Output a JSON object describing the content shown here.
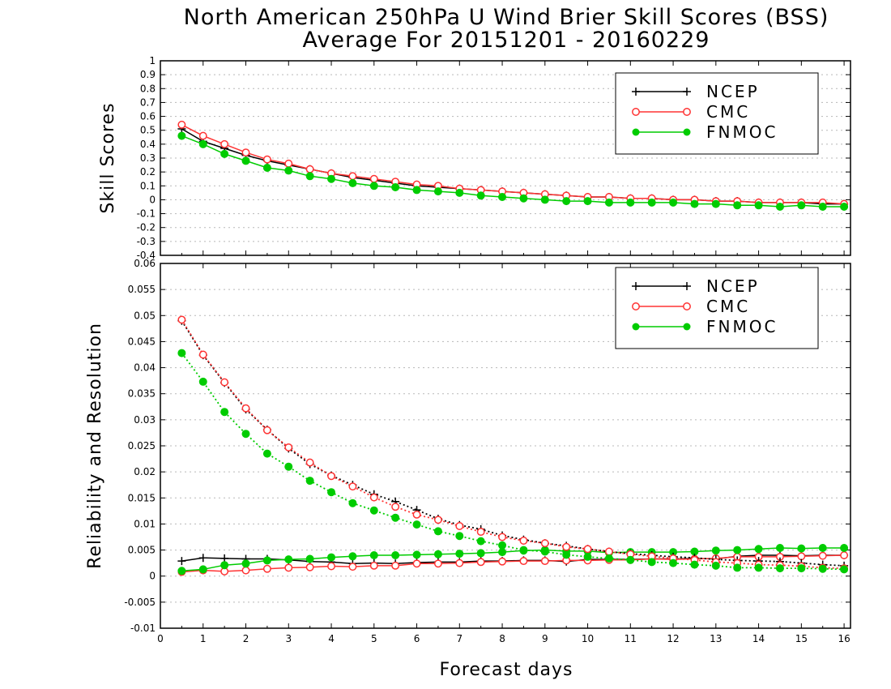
{
  "chart_data": [
    {
      "type": "line",
      "title": "North American 250hPa U Wind Brier Skill Scores (BSS)",
      "subtitle": "Average For 20151201 - 20160229",
      "xlabel": "Forecast days",
      "ylabel": "Skill Scores",
      "xlim": [
        0,
        16.15
      ],
      "ylim": [
        -0.4,
        1
      ],
      "xticks": [
        "0",
        "1",
        "2",
        "3",
        "4",
        "5",
        "6",
        "7",
        "8",
        "9",
        "10",
        "11",
        "12",
        "13",
        "14",
        "15",
        "16"
      ],
      "yticks": [
        "1",
        "0.9",
        "0.8",
        "0.7",
        "0.6",
        "0.5",
        "0.4",
        "0.3",
        "0.2",
        "0.1",
        "0",
        "-0.1",
        "-0.2",
        "-0.3",
        "-0.4"
      ],
      "grid": true,
      "legend_position": "top-right",
      "x": [
        0.5,
        1,
        1.5,
        2,
        2.5,
        3,
        3.5,
        4,
        4.5,
        5,
        5.5,
        6,
        6.5,
        7,
        7.5,
        8,
        8.5,
        9,
        9.5,
        10,
        10.5,
        11,
        11.5,
        12,
        12.5,
        13,
        13.5,
        14,
        14.5,
        15,
        15.5,
        16
      ],
      "series": [
        {
          "name": "NCEP",
          "color": "#000000",
          "marker": "plus",
          "values": [
            0.51,
            0.42,
            0.37,
            0.32,
            0.28,
            0.25,
            0.22,
            0.19,
            0.16,
            0.14,
            0.12,
            0.1,
            0.09,
            0.08,
            0.07,
            0.06,
            0.05,
            0.04,
            0.03,
            0.02,
            0.02,
            0.01,
            0.01,
            0.0,
            0.0,
            -0.01,
            -0.01,
            -0.02,
            -0.02,
            -0.02,
            -0.03,
            -0.03
          ]
        },
        {
          "name": "CMC",
          "color": "#ff3333",
          "marker": "open-circle",
          "values": [
            0.54,
            0.46,
            0.4,
            0.34,
            0.29,
            0.26,
            0.22,
            0.19,
            0.17,
            0.15,
            0.13,
            0.11,
            0.1,
            0.08,
            0.07,
            0.06,
            0.05,
            0.04,
            0.03,
            0.02,
            0.02,
            0.01,
            0.01,
            0.0,
            0.0,
            -0.01,
            -0.01,
            -0.02,
            -0.02,
            -0.02,
            -0.02,
            -0.03
          ]
        },
        {
          "name": "FNMOC",
          "color": "#00cc00",
          "marker": "filled-circle",
          "values": [
            0.46,
            0.4,
            0.33,
            0.28,
            0.23,
            0.21,
            0.17,
            0.15,
            0.12,
            0.1,
            0.09,
            0.07,
            0.06,
            0.05,
            0.03,
            0.02,
            0.01,
            0.0,
            -0.01,
            -0.01,
            -0.02,
            -0.02,
            -0.02,
            -0.02,
            -0.03,
            -0.03,
            -0.04,
            -0.04,
            -0.05,
            -0.04,
            -0.05,
            -0.05
          ]
        }
      ]
    },
    {
      "type": "line",
      "xlabel": "Forecast days",
      "ylabel": "Reliability and Resolution",
      "xlim": [
        0,
        16.15
      ],
      "ylim": [
        -0.01,
        0.06
      ],
      "xticks": [
        "0",
        "1",
        "2",
        "3",
        "4",
        "5",
        "6",
        "7",
        "8",
        "9",
        "10",
        "11",
        "12",
        "13",
        "14",
        "15",
        "16"
      ],
      "yticks": [
        "0.06",
        "0.055",
        "0.05",
        "0.045",
        "0.04",
        "0.035",
        "0.03",
        "0.025",
        "0.02",
        "0.015",
        "0.01",
        "0.005",
        "0",
        "-0.005",
        "-0.01"
      ],
      "grid": true,
      "legend_position": "top-right",
      "x": [
        0.5,
        1,
        1.5,
        2,
        2.5,
        3,
        3.5,
        4,
        4.5,
        5,
        5.5,
        6,
        6.5,
        7,
        7.5,
        8,
        8.5,
        9,
        9.5,
        10,
        10.5,
        11,
        11.5,
        12,
        12.5,
        13,
        13.5,
        14,
        14.5,
        15,
        15.5,
        16
      ],
      "series": [
        {
          "name": "NCEP",
          "color": "#000000",
          "marker": "plus",
          "line": "solid",
          "values": [
            0.0029,
            0.0035,
            0.0034,
            0.0033,
            0.0033,
            0.0031,
            0.0028,
            0.0027,
            0.0024,
            0.0025,
            0.0024,
            0.0026,
            0.0027,
            0.0027,
            0.0029,
            0.0029,
            0.003,
            0.003,
            0.0028,
            0.0032,
            0.0032,
            0.0032,
            0.0033,
            0.0033,
            0.0034,
            0.0033,
            0.0038,
            0.004,
            0.004,
            0.0039,
            0.004,
            0.004
          ]
        },
        {
          "name": "CMC",
          "color": "#ff3333",
          "marker": "open-circle",
          "line": "solid",
          "values": [
            0.0008,
            0.0011,
            0.0009,
            0.0011,
            0.0014,
            0.0016,
            0.0017,
            0.0019,
            0.0018,
            0.002,
            0.002,
            0.0024,
            0.0024,
            0.0025,
            0.0027,
            0.0028,
            0.0029,
            0.0029,
            0.003,
            0.003,
            0.0031,
            0.0031,
            0.0033,
            0.0032,
            0.0033,
            0.0034,
            0.0037,
            0.0037,
            0.0037,
            0.0038,
            0.0039,
            0.004
          ]
        },
        {
          "name": "FNMOC",
          "color": "#00cc00",
          "marker": "filled-circle",
          "line": "solid",
          "values": [
            0.001,
            0.0013,
            0.0021,
            0.0024,
            0.003,
            0.0032,
            0.0033,
            0.0036,
            0.0038,
            0.004,
            0.004,
            0.0041,
            0.0042,
            0.0043,
            0.0044,
            0.0046,
            0.0049,
            0.005,
            0.0048,
            0.0048,
            0.0045,
            0.0046,
            0.0046,
            0.0046,
            0.0047,
            0.0049,
            0.005,
            0.0052,
            0.0054,
            0.0053,
            0.0054,
            0.0054
          ]
        },
        {
          "name": "NCEP",
          "color": "#000000",
          "marker": "plus",
          "line": "dotted",
          "values": [
            0.049,
            0.0424,
            0.0371,
            0.032,
            0.0281,
            0.0245,
            0.0215,
            0.0193,
            0.0175,
            0.0157,
            0.0143,
            0.0127,
            0.011,
            0.0098,
            0.009,
            0.0078,
            0.007,
            0.0063,
            0.0058,
            0.0052,
            0.0047,
            0.0043,
            0.004,
            0.0037,
            0.0035,
            0.0032,
            0.003,
            0.0029,
            0.0028,
            0.0025,
            0.0022,
            0.002
          ]
        },
        {
          "name": "CMC",
          "color": "#ff3333",
          "marker": "open-circle",
          "line": "dotted",
          "values": [
            0.0492,
            0.0425,
            0.0372,
            0.0322,
            0.028,
            0.0247,
            0.0218,
            0.0192,
            0.0172,
            0.0151,
            0.0133,
            0.0118,
            0.0108,
            0.0096,
            0.0085,
            0.0075,
            0.0068,
            0.0063,
            0.0056,
            0.0052,
            0.0047,
            0.0042,
            0.0038,
            0.0034,
            0.0031,
            0.0027,
            0.0025,
            0.0022,
            0.0021,
            0.0019,
            0.0016,
            0.0015
          ]
        },
        {
          "name": "FNMOC",
          "color": "#00cc00",
          "marker": "filled-circle",
          "line": "dotted",
          "values": [
            0.0428,
            0.0373,
            0.0315,
            0.0273,
            0.0235,
            0.021,
            0.0183,
            0.0161,
            0.014,
            0.0126,
            0.0112,
            0.0099,
            0.0086,
            0.0077,
            0.0067,
            0.0059,
            0.005,
            0.0047,
            0.0041,
            0.0037,
            0.0034,
            0.0031,
            0.0027,
            0.0025,
            0.0022,
            0.002,
            0.0016,
            0.0016,
            0.0015,
            0.0015,
            0.0014,
            0.0013
          ]
        }
      ]
    }
  ]
}
